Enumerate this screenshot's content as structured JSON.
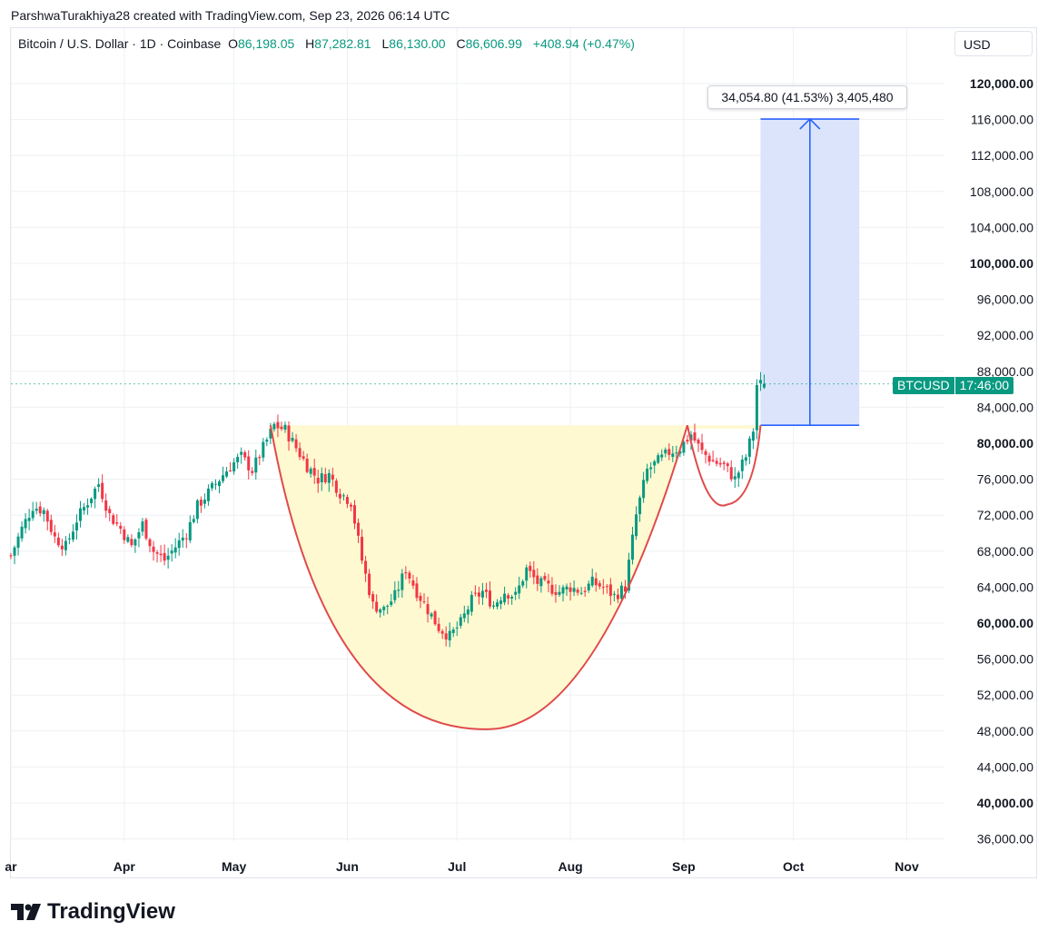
{
  "credit": "ParshwaTurakhiya28 created with TradingView.com, Sep 23, 2026 06:14 UTC",
  "currency": "USD",
  "legend": {
    "symbol": "Bitcoin / U.S. Dollar · 1D · Coinbase",
    "open_key": "O",
    "open": "86,198.05",
    "high_key": "H",
    "high": "87,282.81",
    "low_key": "L",
    "low": "86,130.00",
    "close_key": "C",
    "close": "86,606.99",
    "change": "+408.94 (+0.47%)"
  },
  "measure_label": "34,054.80 (41.53%) 3,405,480",
  "price_tag": {
    "symbol": "BTCUSD",
    "time": "17:46:00"
  },
  "logo_text": "TradingView",
  "colors": {
    "up": "#089981",
    "down": "#f23645",
    "cup_fill": "#fff9d1",
    "cup_line": "#e04a4a",
    "measure_fill": "#dbe4fb",
    "measure_line": "#2962ff",
    "grid": "#eef0f3"
  },
  "chart_data": {
    "type": "candlestick",
    "ylim": [
      34000,
      124000
    ],
    "y_ticks": [
      "120,000.00",
      "116,000.00",
      "112,000.00",
      "108,000.00",
      "104,000.00",
      "100,000.00",
      "96,000.00",
      "92,000.00",
      "88,000.00",
      "84,000.00",
      "80,000.00",
      "76,000.00",
      "72,000.00",
      "68,000.00",
      "64,000.00",
      "60,000.00",
      "56,000.00",
      "52,000.00",
      "48,000.00",
      "44,000.00",
      "40,000.00",
      "36,000.00"
    ],
    "y_tick_values": [
      120000,
      116000,
      112000,
      108000,
      104000,
      100000,
      96000,
      92000,
      88000,
      84000,
      80000,
      76000,
      72000,
      68000,
      64000,
      60000,
      56000,
      52000,
      48000,
      44000,
      40000,
      36000
    ],
    "y_tick_bold": [
      true,
      false,
      false,
      false,
      false,
      true,
      false,
      false,
      false,
      false,
      true,
      false,
      false,
      false,
      false,
      true,
      false,
      false,
      false,
      false,
      true,
      false
    ],
    "x_ticks": [
      "ar",
      "Apr",
      "May",
      "Jun",
      "Jul",
      "Aug",
      "Sep",
      "Oct",
      "Nov"
    ],
    "x_tick_days": [
      1,
      32,
      62,
      93,
      123,
      154,
      185,
      215,
      246
    ],
    "close_series": [
      [
        "2026-03-01",
        67500
      ],
      [
        "2026-03-04",
        70500
      ],
      [
        "2026-03-07",
        73000
      ],
      [
        "2026-03-10",
        72500
      ],
      [
        "2026-03-13",
        69500
      ],
      [
        "2026-03-16",
        68500
      ],
      [
        "2026-03-19",
        71500
      ],
      [
        "2026-03-22",
        73500
      ],
      [
        "2026-03-25",
        75500
      ],
      [
        "2026-03-28",
        72000
      ],
      [
        "2026-03-31",
        70500
      ],
      [
        "2026-04-03",
        68500
      ],
      [
        "2026-04-06",
        71000
      ],
      [
        "2026-04-09",
        68000
      ],
      [
        "2026-04-12",
        67000
      ],
      [
        "2026-04-15",
        68500
      ],
      [
        "2026-04-18",
        70000
      ],
      [
        "2026-04-21",
        73000
      ],
      [
        "2026-04-24",
        74500
      ],
      [
        "2026-04-27",
        76000
      ],
      [
        "2026-04-30",
        77500
      ],
      [
        "2026-05-03",
        78500
      ],
      [
        "2026-05-06",
        77000
      ],
      [
        "2026-05-09",
        79500
      ],
      [
        "2026-05-12",
        82000
      ],
      [
        "2026-05-15",
        81500
      ],
      [
        "2026-05-18",
        79500
      ],
      [
        "2026-05-21",
        77500
      ],
      [
        "2026-05-24",
        76000
      ],
      [
        "2026-05-27",
        76500
      ],
      [
        "2026-05-30",
        74500
      ],
      [
        "2026-06-02",
        73500
      ],
      [
        "2026-06-05",
        67000
      ],
      [
        "2026-06-08",
        62000
      ],
      [
        "2026-06-11",
        61500
      ],
      [
        "2026-06-14",
        63000
      ],
      [
        "2026-06-17",
        66000
      ],
      [
        "2026-06-20",
        63500
      ],
      [
        "2026-06-23",
        61500
      ],
      [
        "2026-06-26",
        59500
      ],
      [
        "2026-06-29",
        58500
      ],
      [
        "2026-07-02",
        60000
      ],
      [
        "2026-07-05",
        62500
      ],
      [
        "2026-07-08",
        63500
      ],
      [
        "2026-07-11",
        62000
      ],
      [
        "2026-07-14",
        63500
      ],
      [
        "2026-07-17",
        63000
      ],
      [
        "2026-07-20",
        66000
      ],
      [
        "2026-07-23",
        64500
      ],
      [
        "2026-07-26",
        64000
      ],
      [
        "2026-07-29",
        63500
      ],
      [
        "2026-08-01",
        64000
      ],
      [
        "2026-08-04",
        63500
      ],
      [
        "2026-08-07",
        64500
      ],
      [
        "2026-08-10",
        64000
      ],
      [
        "2026-08-13",
        63000
      ],
      [
        "2026-08-16",
        64000
      ],
      [
        "2026-08-19",
        72000
      ],
      [
        "2026-08-22",
        77000
      ],
      [
        "2026-08-25",
        78000
      ],
      [
        "2026-08-28",
        79000
      ],
      [
        "2026-08-31",
        79500
      ],
      [
        "2026-09-03",
        81000
      ],
      [
        "2026-09-06",
        79000
      ],
      [
        "2026-09-09",
        78000
      ],
      [
        "2026-09-12",
        77500
      ],
      [
        "2026-09-15",
        76000
      ],
      [
        "2026-09-18",
        78500
      ],
      [
        "2026-09-20",
        81500
      ],
      [
        "2026-09-21",
        86500
      ],
      [
        "2026-09-23",
        86606.99
      ]
    ],
    "annotations": {
      "cup_rim": 82000,
      "cup_bottom": 48200,
      "handle_bottom": 73200,
      "measure_from": 82000,
      "measure_to": 116054.8,
      "measure_dates": [
        "2026-09-22",
        "2026-10-19"
      ]
    }
  }
}
